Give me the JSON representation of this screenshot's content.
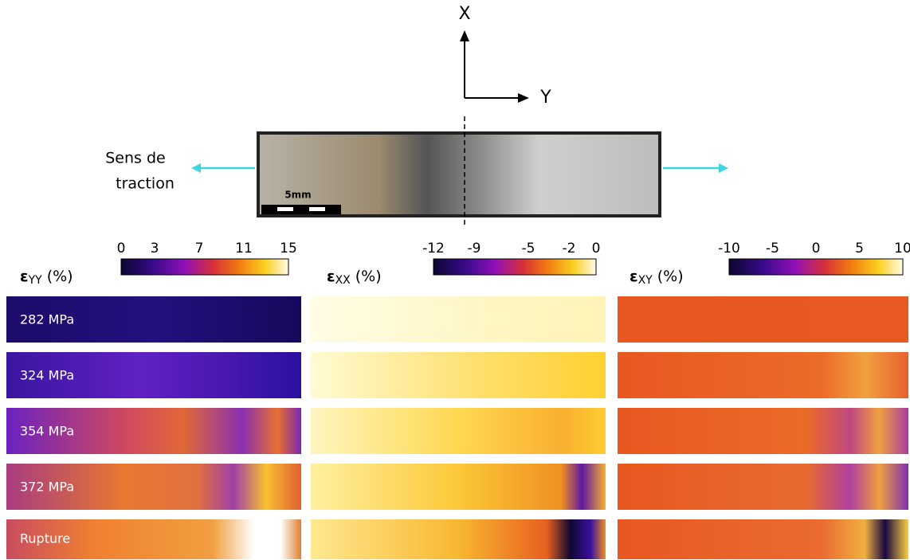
{
  "axes": {
    "x": "X",
    "y": "Y"
  },
  "specimen": {
    "scale": "5mm",
    "load_direction": [
      "Sens de",
      "traction"
    ]
  },
  "maps": [
    {
      "symbol": "ε",
      "subscript": "YY",
      "unit": "(%)",
      "ticks": [
        0,
        3,
        7,
        11,
        15
      ]
    },
    {
      "symbol": "ε",
      "subscript": "XX",
      "unit": "(%)",
      "ticks": [
        -12,
        -9,
        -5,
        -2,
        0
      ]
    },
    {
      "symbol": "ε",
      "subscript": "XY",
      "unit": "(%)",
      "ticks": [
        -10,
        -5,
        0,
        5,
        10
      ]
    }
  ],
  "load_steps": [
    "282 MPa",
    "324 MPa",
    "354 MPa",
    "372 MPa",
    "Rupture"
  ]
}
